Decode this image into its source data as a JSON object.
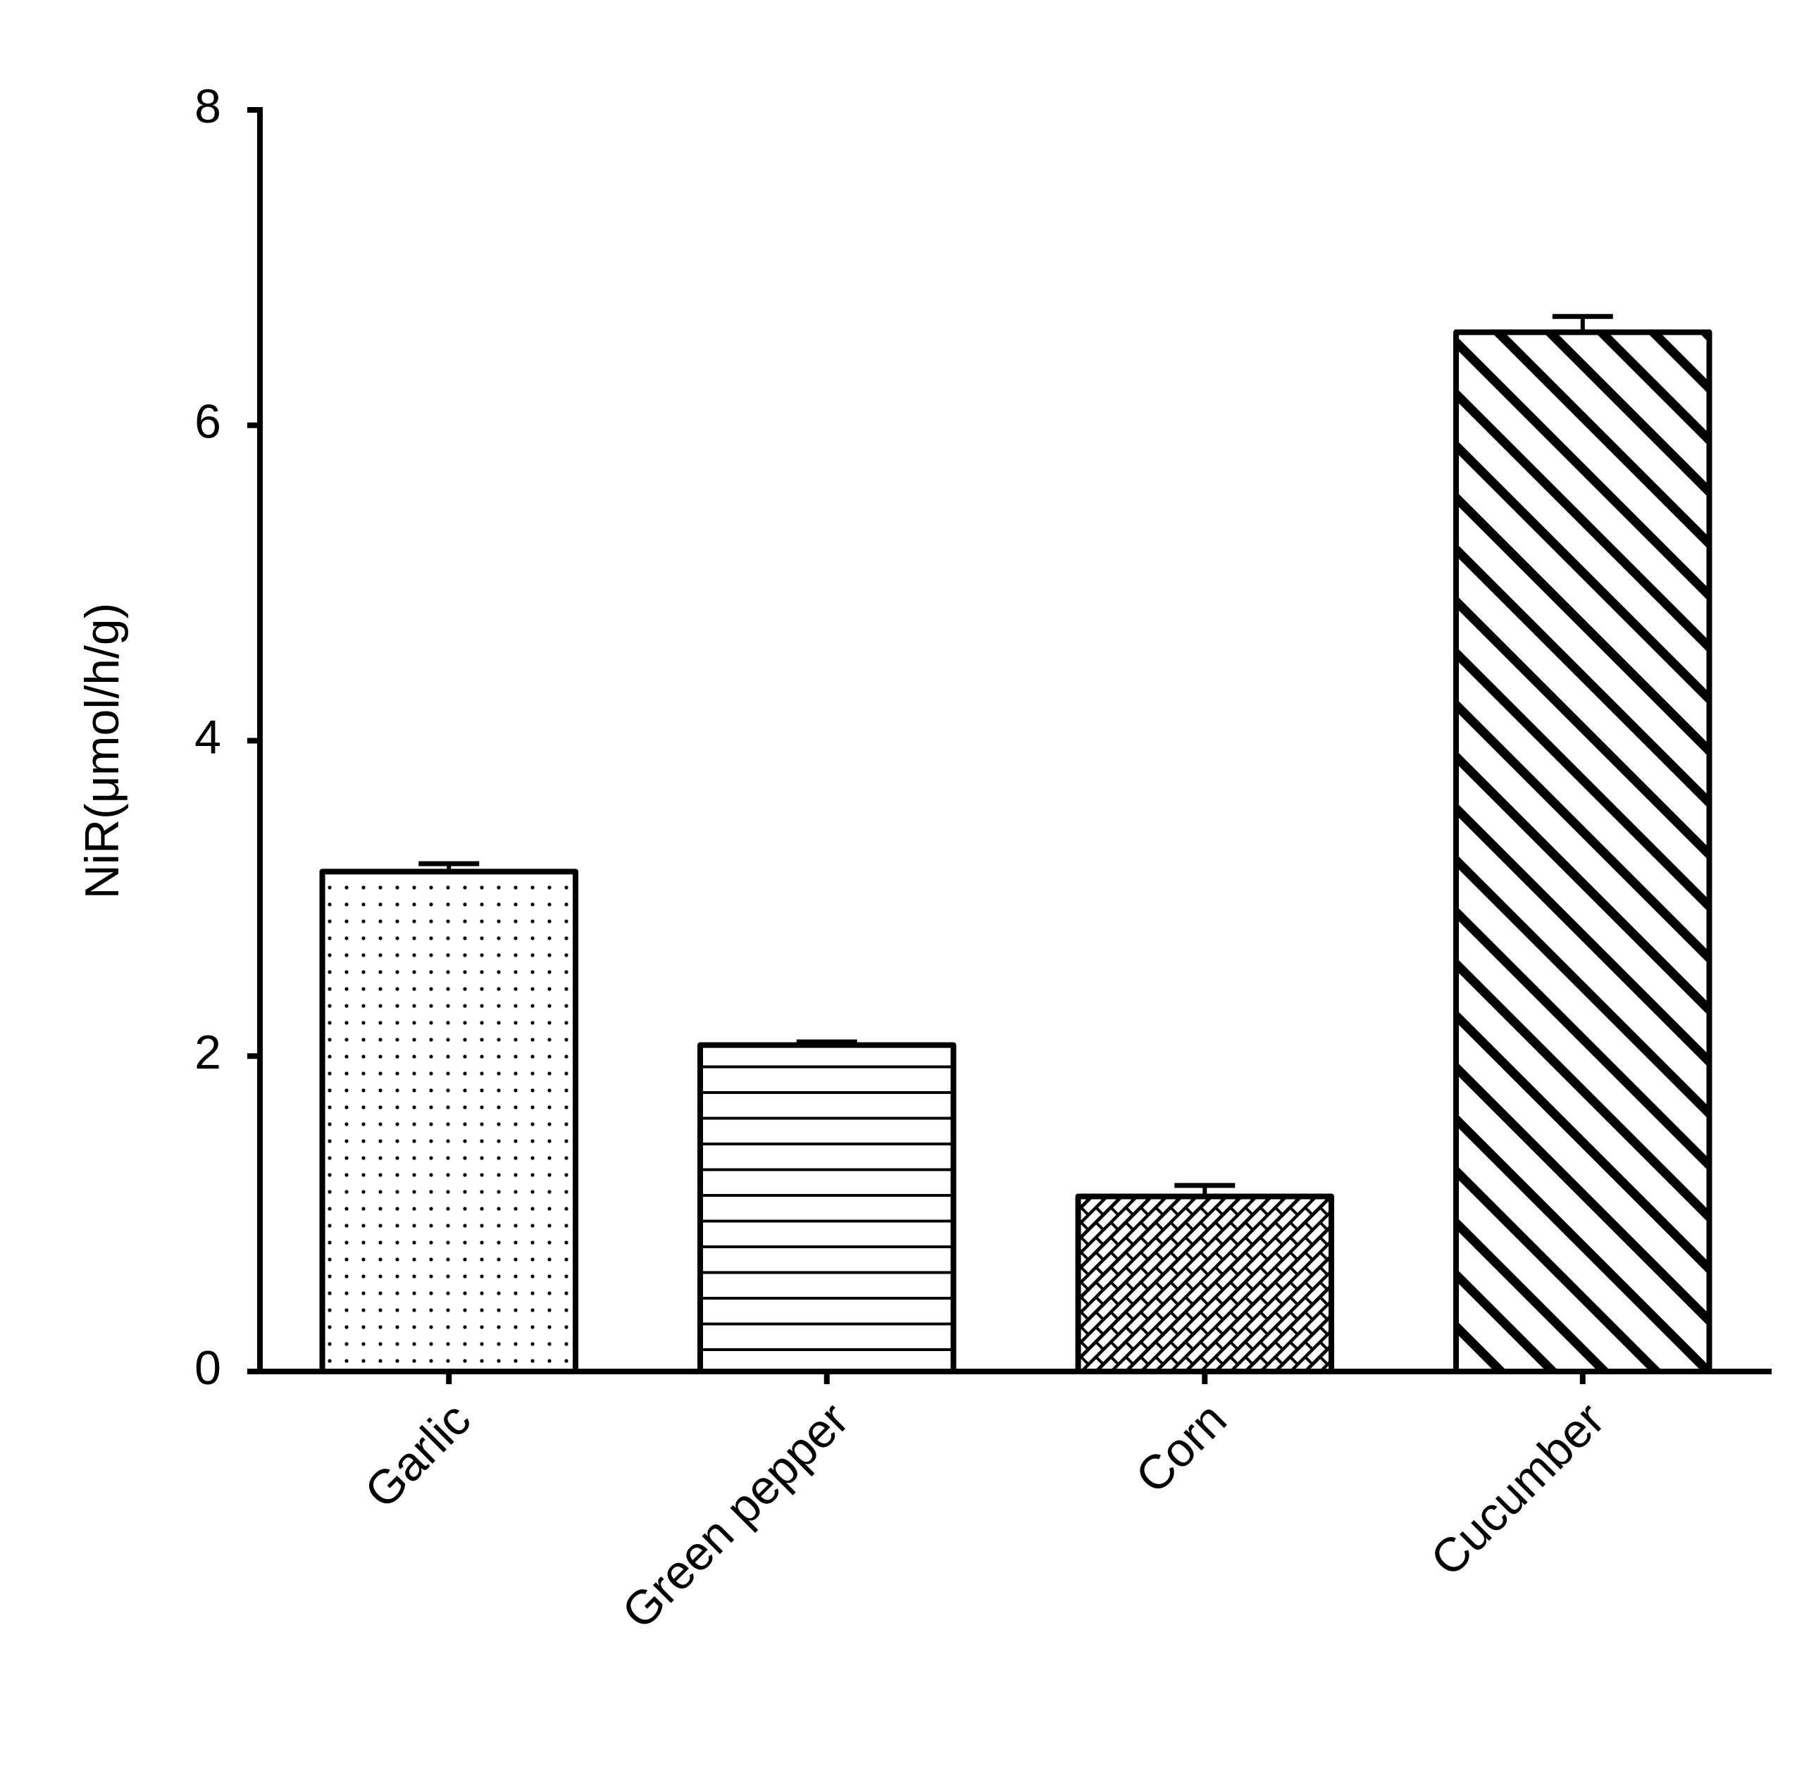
{
  "chart_data": {
    "type": "bar",
    "ylabel": "NiR(μmol/h/g)",
    "categories": [
      "Garlic",
      "Green pepper",
      "Corn",
      "Cucumber"
    ],
    "values": [
      3.17,
      2.07,
      1.11,
      6.59
    ],
    "errors": [
      0.05,
      0.02,
      0.07,
      0.1
    ],
    "patterns": [
      "dots",
      "horizontal",
      "brick",
      "diagonal"
    ],
    "color": "#000000",
    "ylim": [
      0,
      8
    ],
    "yticks": [
      0,
      2,
      4,
      6,
      8
    ],
    "grid": false
  }
}
